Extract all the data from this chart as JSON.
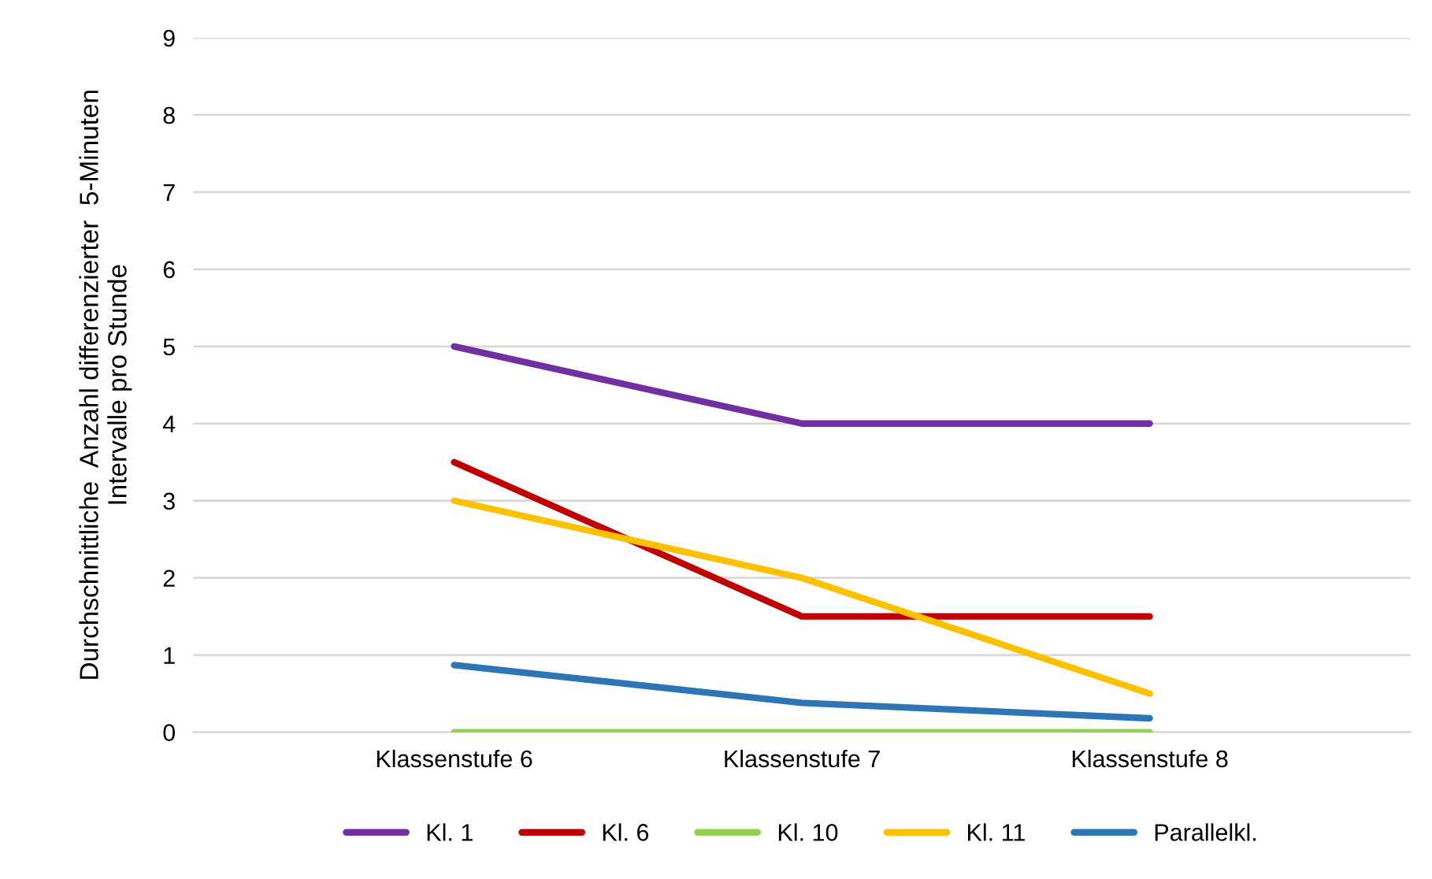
{
  "chart_data": {
    "type": "line",
    "ylabel": "Durchschnittliche  Anzahl differenzierter  5-Minuten\nIntervalle pro Stunde",
    "categories": [
      "Klassenstufe 6",
      "Klassenstufe 7",
      "Klassenstufe 8"
    ],
    "series": [
      {
        "name": "Kl. 1",
        "color": "#7030a0",
        "values": [
          5,
          4,
          4
        ]
      },
      {
        "name": "Kl. 6",
        "color": "#c00000",
        "values": [
          3.5,
          1.5,
          1.5
        ]
      },
      {
        "name": "Kl. 10",
        "color": "#92d050",
        "values": [
          0,
          0,
          0
        ]
      },
      {
        "name": "Kl. 11",
        "color": "#ffc000",
        "values": [
          3,
          2,
          0.5
        ]
      },
      {
        "name": "Parallelkl.",
        "color": "#2e75b6",
        "values": [
          0.87,
          0.38,
          0.18
        ]
      }
    ],
    "ylim": [
      0,
      9
    ],
    "yticks": [
      0,
      1,
      2,
      3,
      4,
      5,
      6,
      7,
      8,
      9
    ],
    "grid": "y",
    "legend": "bottom",
    "marker": "none"
  }
}
